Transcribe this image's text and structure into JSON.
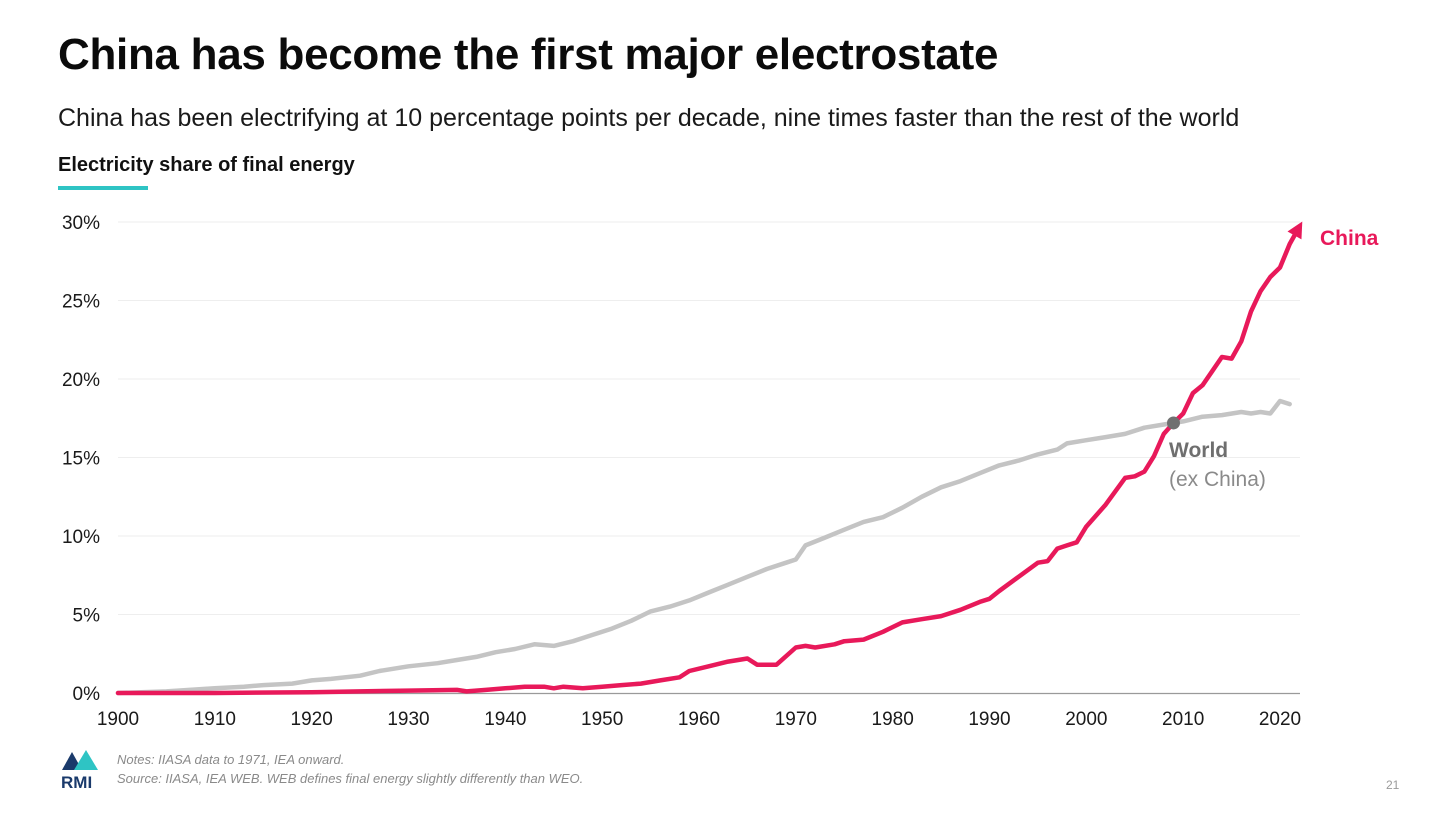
{
  "slide": {
    "title": "China has become the first major electrostate",
    "subtitle": "China has been electrifying at 10 percentage points per decade, nine times faster than the rest of the world",
    "chart_label": "Electricity share of final energy",
    "notes": "Notes: IIASA data to 1971, IEA onward.",
    "source": "Source: IIASA, IEA WEB. WEB defines final energy slightly differently than WEO.",
    "page_number": "21",
    "logo_text": "RMI"
  },
  "colors": {
    "china": "#e8195a",
    "world": "#c4c4c4",
    "accent": "#2ec4c4",
    "intersection": "#707070"
  },
  "chart_data": {
    "type": "line",
    "title": "Electricity share of final energy",
    "xlabel": "",
    "ylabel": "",
    "xlim": [
      1900,
      2022
    ],
    "ylim": [
      0,
      30
    ],
    "x_ticks": [
      "1900",
      "1910",
      "1920",
      "1930",
      "1940",
      "1950",
      "1960",
      "1970",
      "1980",
      "1990",
      "2000",
      "2010",
      "2020"
    ],
    "y_ticks": [
      "0%",
      "5%",
      "10%",
      "15%",
      "20%",
      "25%",
      "30%"
    ],
    "grid": true,
    "intersection": {
      "x": 2009,
      "y": 17.2
    },
    "series": [
      {
        "name": "World",
        "label_line1": "World",
        "label_line2": "(ex China)",
        "points": [
          [
            1900,
            0.0
          ],
          [
            1905,
            0.1
          ],
          [
            1910,
            0.3
          ],
          [
            1913,
            0.4
          ],
          [
            1915,
            0.5
          ],
          [
            1918,
            0.6
          ],
          [
            1920,
            0.8
          ],
          [
            1922,
            0.9
          ],
          [
            1925,
            1.1
          ],
          [
            1927,
            1.4
          ],
          [
            1930,
            1.7
          ],
          [
            1933,
            1.9
          ],
          [
            1935,
            2.1
          ],
          [
            1937,
            2.3
          ],
          [
            1939,
            2.6
          ],
          [
            1941,
            2.8
          ],
          [
            1943,
            3.1
          ],
          [
            1945,
            3.0
          ],
          [
            1947,
            3.3
          ],
          [
            1949,
            3.7
          ],
          [
            1951,
            4.1
          ],
          [
            1953,
            4.6
          ],
          [
            1955,
            5.2
          ],
          [
            1957,
            5.5
          ],
          [
            1959,
            5.9
          ],
          [
            1961,
            6.4
          ],
          [
            1963,
            6.9
          ],
          [
            1965,
            7.4
          ],
          [
            1967,
            7.9
          ],
          [
            1969,
            8.3
          ],
          [
            1970,
            8.5
          ],
          [
            1971,
            9.4
          ],
          [
            1973,
            9.9
          ],
          [
            1975,
            10.4
          ],
          [
            1977,
            10.9
          ],
          [
            1979,
            11.2
          ],
          [
            1981,
            11.8
          ],
          [
            1983,
            12.5
          ],
          [
            1985,
            13.1
          ],
          [
            1987,
            13.5
          ],
          [
            1989,
            14.0
          ],
          [
            1991,
            14.5
          ],
          [
            1993,
            14.8
          ],
          [
            1995,
            15.2
          ],
          [
            1997,
            15.5
          ],
          [
            1998,
            15.9
          ],
          [
            2000,
            16.1
          ],
          [
            2002,
            16.3
          ],
          [
            2004,
            16.5
          ],
          [
            2006,
            16.9
          ],
          [
            2008,
            17.1
          ],
          [
            2009,
            17.2
          ],
          [
            2010,
            17.3
          ],
          [
            2012,
            17.6
          ],
          [
            2014,
            17.7
          ],
          [
            2016,
            17.9
          ],
          [
            2017,
            17.8
          ],
          [
            2018,
            17.9
          ],
          [
            2019,
            17.8
          ],
          [
            2020,
            18.6
          ],
          [
            2021,
            18.4
          ]
        ]
      },
      {
        "name": "China",
        "label_line1": "China",
        "label_line2": "",
        "points": [
          [
            1900,
            0.0
          ],
          [
            1910,
            0.0
          ],
          [
            1920,
            0.05
          ],
          [
            1925,
            0.1
          ],
          [
            1930,
            0.15
          ],
          [
            1935,
            0.2
          ],
          [
            1936,
            0.1
          ],
          [
            1938,
            0.2
          ],
          [
            1940,
            0.3
          ],
          [
            1942,
            0.4
          ],
          [
            1944,
            0.4
          ],
          [
            1945,
            0.3
          ],
          [
            1946,
            0.4
          ],
          [
            1948,
            0.3
          ],
          [
            1950,
            0.4
          ],
          [
            1952,
            0.5
          ],
          [
            1954,
            0.6
          ],
          [
            1956,
            0.8
          ],
          [
            1958,
            1.0
          ],
          [
            1959,
            1.4
          ],
          [
            1961,
            1.7
          ],
          [
            1963,
            2.0
          ],
          [
            1965,
            2.2
          ],
          [
            1966,
            1.8
          ],
          [
            1968,
            1.8
          ],
          [
            1970,
            2.9
          ],
          [
            1971,
            3.0
          ],
          [
            1972,
            2.9
          ],
          [
            1974,
            3.1
          ],
          [
            1975,
            3.3
          ],
          [
            1977,
            3.4
          ],
          [
            1979,
            3.9
          ],
          [
            1981,
            4.5
          ],
          [
            1983,
            4.7
          ],
          [
            1985,
            4.9
          ],
          [
            1987,
            5.3
          ],
          [
            1989,
            5.8
          ],
          [
            1990,
            6.0
          ],
          [
            1991,
            6.5
          ],
          [
            1993,
            7.4
          ],
          [
            1995,
            8.3
          ],
          [
            1996,
            8.4
          ],
          [
            1997,
            9.2
          ],
          [
            1998,
            9.4
          ],
          [
            1999,
            9.6
          ],
          [
            2000,
            10.6
          ],
          [
            2002,
            12.0
          ],
          [
            2004,
            13.7
          ],
          [
            2005,
            13.8
          ],
          [
            2006,
            14.1
          ],
          [
            2007,
            15.1
          ],
          [
            2008,
            16.5
          ],
          [
            2009,
            17.2
          ],
          [
            2010,
            17.8
          ],
          [
            2011,
            19.1
          ],
          [
            2012,
            19.6
          ],
          [
            2013,
            20.5
          ],
          [
            2014,
            21.4
          ],
          [
            2015,
            21.3
          ],
          [
            2016,
            22.4
          ],
          [
            2017,
            24.3
          ],
          [
            2018,
            25.6
          ],
          [
            2019,
            26.5
          ],
          [
            2020,
            27.1
          ],
          [
            2021,
            28.6
          ],
          [
            2022,
            29.7
          ]
        ]
      }
    ]
  }
}
